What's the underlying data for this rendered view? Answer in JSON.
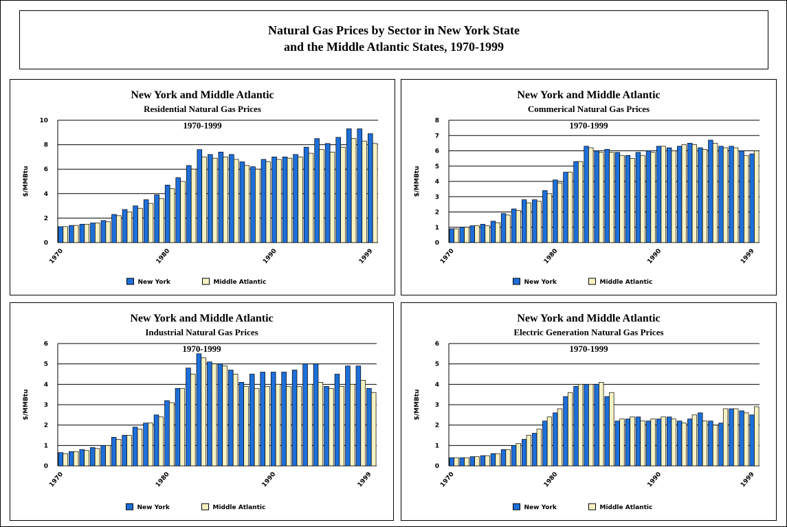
{
  "title": [
    "Natural Gas Prices by Sector in New York State",
    "and the Middle Atlantic States, 1970-1999"
  ],
  "chart_data": [
    {
      "type": "bar",
      "title": [
        "New York and Middle Atlantic",
        "Residential Natural Gas Prices",
        "1970-1999"
      ],
      "ylabel": "$/MMBtu",
      "categories": [
        "1970",
        null,
        null,
        null,
        null,
        null,
        null,
        null,
        null,
        null,
        "1980",
        null,
        null,
        null,
        null,
        null,
        null,
        null,
        null,
        null,
        "1990",
        null,
        null,
        null,
        null,
        null,
        null,
        null,
        null,
        "1999"
      ],
      "series": [
        {
          "name": "New York",
          "color": "#1e6fd9",
          "values": [
            1.3,
            1.4,
            1.5,
            1.6,
            1.8,
            2.3,
            2.7,
            3.0,
            3.5,
            3.9,
            4.7,
            5.3,
            6.3,
            7.6,
            7.2,
            7.4,
            7.2,
            6.6,
            6.2,
            6.8,
            7.0,
            7.0,
            7.2,
            7.8,
            8.5,
            8.1,
            8.6,
            9.3,
            9.3,
            8.9
          ]
        },
        {
          "name": "Middle Atlantic",
          "color": "#f7f2c4",
          "values": [
            1.3,
            1.4,
            1.5,
            1.6,
            1.7,
            2.2,
            2.5,
            2.8,
            3.2,
            3.6,
            4.4,
            5.0,
            6.0,
            7.0,
            6.9,
            7.0,
            6.8,
            6.3,
            6.0,
            6.6,
            6.8,
            6.9,
            7.0,
            7.3,
            7.6,
            7.4,
            7.8,
            8.5,
            8.3,
            8.1
          ]
        }
      ],
      "ylim": [
        0,
        10
      ],
      "yticks": [
        0,
        2,
        4,
        6,
        8,
        10
      ],
      "grid": true,
      "legend": "bottom"
    },
    {
      "type": "bar",
      "title": [
        "New York and Middle Atlantic",
        "Commerical Natural Gas Prices",
        "1970-1999"
      ],
      "ylabel": "$/MMBtu",
      "categories": [
        "1970",
        null,
        null,
        null,
        null,
        null,
        null,
        null,
        null,
        null,
        "1980",
        null,
        null,
        null,
        null,
        null,
        null,
        null,
        null,
        null,
        "1990",
        null,
        null,
        null,
        null,
        null,
        null,
        null,
        null,
        "1999"
      ],
      "series": [
        {
          "name": "New York",
          "color": "#1e6fd9",
          "values": [
            0.9,
            1.0,
            1.1,
            1.2,
            1.4,
            1.9,
            2.2,
            2.8,
            2.8,
            3.4,
            4.1,
            4.6,
            5.3,
            6.3,
            6.0,
            6.1,
            5.9,
            5.7,
            5.9,
            6.0,
            6.3,
            6.2,
            6.3,
            6.5,
            6.2,
            6.7,
            6.3,
            6.3,
            6.0,
            5.8
          ]
        },
        {
          "name": "Middle Atlantic",
          "color": "#f7f2c4",
          "values": [
            0.9,
            1.0,
            1.1,
            1.1,
            1.3,
            1.8,
            2.1,
            2.6,
            2.7,
            3.2,
            3.9,
            4.6,
            5.3,
            6.2,
            5.9,
            5.9,
            5.7,
            5.5,
            5.7,
            5.9,
            6.3,
            6.0,
            6.4,
            6.4,
            6.1,
            6.5,
            6.2,
            6.2,
            5.7,
            6.0
          ]
        }
      ],
      "ylim": [
        0,
        8
      ],
      "yticks": [
        0,
        1,
        2,
        3,
        4,
        5,
        6,
        7,
        8
      ],
      "grid": true,
      "legend": "bottom"
    },
    {
      "type": "bar",
      "title": [
        "New York and Middle Atlantic",
        "Industrial Natural Gas Prices",
        "1970-1999"
      ],
      "ylabel": "$/MMBtu",
      "categories": [
        "1970",
        null,
        null,
        null,
        null,
        null,
        null,
        null,
        null,
        null,
        "1980",
        null,
        null,
        null,
        null,
        null,
        null,
        null,
        null,
        null,
        "1990",
        null,
        null,
        null,
        null,
        null,
        null,
        null,
        null,
        "1999"
      ],
      "series": [
        {
          "name": "New York",
          "color": "#1e6fd9",
          "values": [
            0.65,
            0.7,
            0.8,
            0.9,
            1.0,
            1.4,
            1.5,
            1.9,
            2.1,
            2.5,
            3.2,
            3.8,
            4.8,
            5.5,
            5.1,
            5.0,
            4.7,
            4.1,
            4.5,
            4.6,
            4.6,
            4.6,
            4.7,
            5.0,
            5.0,
            3.9,
            4.5,
            4.9,
            4.9,
            3.8
          ]
        },
        {
          "name": "Middle Atlantic",
          "color": "#f7f2c4",
          "values": [
            0.6,
            0.7,
            0.75,
            0.85,
            1.0,
            1.3,
            1.5,
            1.8,
            2.1,
            2.4,
            3.1,
            3.8,
            4.5,
            5.3,
            5.0,
            4.9,
            4.5,
            3.9,
            3.8,
            3.9,
            4.0,
            3.9,
            3.9,
            4.0,
            4.1,
            3.8,
            3.9,
            4.0,
            4.2,
            3.6
          ]
        }
      ],
      "ylim": [
        0,
        6
      ],
      "yticks": [
        0,
        1,
        2,
        3,
        4,
        5,
        6
      ],
      "grid": true,
      "legend": "bottom"
    },
    {
      "type": "bar",
      "title": [
        "New York and Middle Atlantic",
        "Electric Generation Natural Gas Prices",
        "1970-1999"
      ],
      "ylabel": "$/MMBtu",
      "categories": [
        "1970",
        null,
        null,
        null,
        null,
        null,
        null,
        null,
        null,
        null,
        "1980",
        null,
        null,
        null,
        null,
        null,
        null,
        null,
        null,
        null,
        "1990",
        null,
        null,
        null,
        null,
        null,
        null,
        null,
        null,
        "1999"
      ],
      "series": [
        {
          "name": "New York",
          "color": "#1e6fd9",
          "values": [
            0.4,
            0.4,
            0.45,
            0.5,
            0.6,
            0.8,
            1.0,
            1.3,
            1.6,
            2.2,
            2.6,
            3.4,
            3.9,
            4.0,
            4.0,
            3.4,
            2.2,
            2.3,
            2.4,
            2.2,
            2.3,
            2.4,
            2.2,
            2.3,
            2.6,
            2.2,
            2.1,
            2.8,
            2.7,
            2.5
          ]
        },
        {
          "name": "Middle Atlantic",
          "color": "#f7f2c4",
          "values": [
            0.4,
            0.4,
            0.45,
            0.5,
            0.6,
            0.8,
            1.1,
            1.5,
            1.8,
            2.4,
            2.8,
            3.6,
            4.0,
            4.0,
            4.1,
            3.6,
            2.3,
            2.4,
            2.2,
            2.3,
            2.4,
            2.3,
            2.1,
            2.5,
            2.2,
            2.0,
            2.8,
            2.8,
            2.6,
            2.9
          ]
        }
      ],
      "ylim": [
        0,
        6
      ],
      "yticks": [
        0,
        1,
        2,
        3,
        4,
        5,
        6
      ],
      "grid": true,
      "legend": "bottom"
    }
  ]
}
